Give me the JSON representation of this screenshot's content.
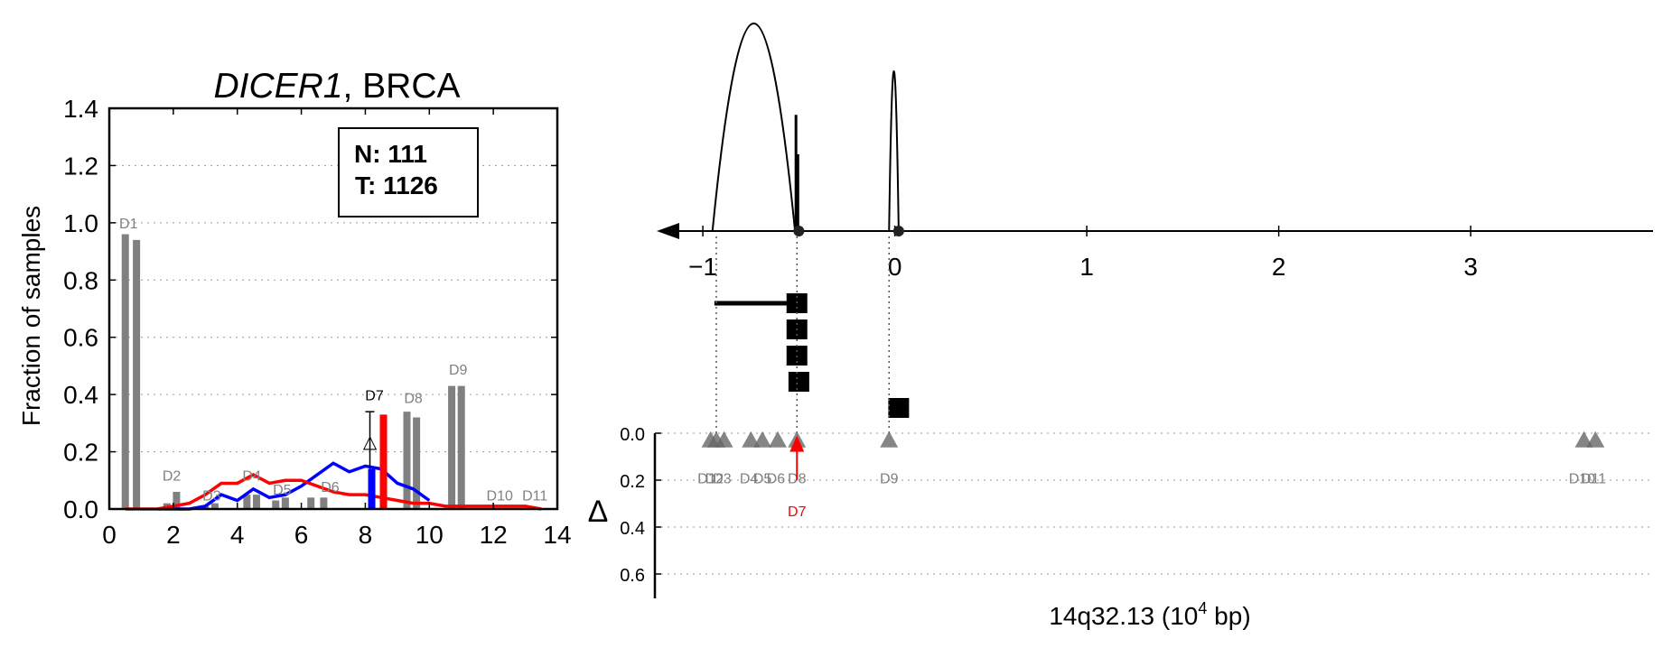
{
  "chart_data": [
    {
      "type": "bar",
      "title_italic": "DICER1",
      "title_rest": ", BRCA",
      "ylabel": "Fraction of samples",
      "xlim": [
        0,
        14
      ],
      "ylim": [
        0,
        1.4
      ],
      "xticks": [
        "0",
        "2",
        "4",
        "6",
        "8",
        "10",
        "12",
        "14"
      ],
      "yticks": [
        "0.0",
        "0.2",
        "0.4",
        "0.6",
        "0.8",
        "1.0",
        "1.2",
        "1.4"
      ],
      "grid": "horizontal dotted",
      "counts": {
        "normal": "N: 111",
        "tumor": "T: 1126"
      },
      "colors": {
        "normal": "#0000ff",
        "tumor": "#ff0000",
        "bar": "#808080",
        "highlight": "#000000"
      },
      "bars": [
        {
          "label": "D1",
          "x1": 0.5,
          "y1": 0.96,
          "x2": 0.85,
          "y2": 0.94,
          "label_x": 0.6,
          "label_y": 0.98
        },
        {
          "label": "D2",
          "x1": 1.8,
          "y1": 0.02,
          "x2": 2.1,
          "y2": 0.06,
          "label_x": 1.95,
          "label_y": 0.1
        },
        {
          "label": "D3",
          "x1": 3.0,
          "y1": 0.01,
          "x2": 3.3,
          "y2": 0.02,
          "label_x": 3.2,
          "label_y": 0.03
        },
        {
          "label": "D4",
          "x1": 4.3,
          "y1": 0.05,
          "x2": 4.6,
          "y2": 0.05,
          "label_x": 4.45,
          "label_y": 0.1
        },
        {
          "label": "D5",
          "x1": 5.2,
          "y1": 0.03,
          "x2": 5.5,
          "y2": 0.04,
          "label_x": 5.4,
          "label_y": 0.05
        },
        {
          "label": "D6",
          "x1": 6.3,
          "y1": 0.04,
          "x2": 6.7,
          "y2": 0.04,
          "label_x": 6.9,
          "label_y": 0.06
        },
        {
          "label": "D8",
          "x1": 9.3,
          "y1": 0.34,
          "x2": 9.6,
          "y2": 0.32,
          "label_x": 9.5,
          "label_y": 0.37
        },
        {
          "label": "D9",
          "x1": 10.7,
          "y1": 0.43,
          "x2": 11.0,
          "y2": 0.43,
          "label_x": 10.9,
          "label_y": 0.47
        },
        {
          "label": "D10",
          "x1": 12.1,
          "y1": 0.0,
          "x2": 12.4,
          "y2": 0.0,
          "label_x": 12.2,
          "label_y": 0.03
        },
        {
          "label": "D11",
          "x1": 13.2,
          "y1": 0.0,
          "x2": 13.5,
          "y2": 0.0,
          "label_x": 13.3,
          "label_y": 0.03
        }
      ],
      "highlight": {
        "label": "D7",
        "x": 8.2,
        "normal": 0.14,
        "tumor": 0.33,
        "marker": "△",
        "marker_y": 0.24,
        "err_low": 0.14,
        "err_high": 0.34,
        "label_y": 0.38
      },
      "series": [
        {
          "name": "normal",
          "x": [
            1.5,
            2,
            2.5,
            3,
            3.5,
            4,
            4.5,
            5,
            5.5,
            6,
            6.5,
            7,
            7.5,
            8,
            8.5,
            9,
            9.5,
            10
          ],
          "y": [
            0,
            0,
            0,
            0.01,
            0.05,
            0.03,
            0.07,
            0.04,
            0.05,
            0.08,
            0.12,
            0.16,
            0.13,
            0.15,
            0.14,
            0.09,
            0.07,
            0.03
          ]
        },
        {
          "name": "tumor",
          "x": [
            0.5,
            1,
            1.5,
            2,
            2.5,
            3,
            3.5,
            4,
            4.5,
            5,
            5.5,
            6,
            6.5,
            7,
            7.5,
            8,
            8.5,
            9,
            9.5,
            10,
            10.5,
            11,
            11.5,
            12,
            12.5,
            13,
            13.5
          ],
          "y": [
            0,
            0,
            0,
            0.01,
            0.02,
            0.05,
            0.09,
            0.09,
            0.12,
            0.09,
            0.1,
            0.1,
            0.08,
            0.06,
            0.05,
            0.05,
            0.04,
            0.03,
            0.02,
            0.02,
            0.01,
            0.01,
            0.01,
            0.01,
            0.01,
            0.01,
            0
          ]
        }
      ]
    },
    {
      "type": "scatter",
      "xlabel": "14q32.13 (10⁴ bp)",
      "xlabel_main": "14q32.13 (10",
      "xlabel_sup": "4",
      "xlabel_tail": " bp)",
      "ylabel": "Δ",
      "xlim": [
        -1.25,
        3.95
      ],
      "xticks": [
        {
          "v": -1,
          "label": "−1"
        },
        {
          "v": 0,
          "label": "0"
        },
        {
          "v": 1,
          "label": "1"
        },
        {
          "v": 2,
          "label": "2"
        },
        {
          "v": 3,
          "label": "3"
        }
      ],
      "ylim": [
        0.65,
        -0.02
      ],
      "yticks": [
        "0.0",
        "0.2",
        "0.4",
        "0.6"
      ],
      "grid": "horizontal dotted",
      "colors": {
        "gene": "#000000",
        "marker": "#666666",
        "highlight": "#ff0000",
        "label": "#7f7f7f"
      },
      "arcs": [
        {
          "from": -0.95,
          "to": -0.52,
          "height": 1.0
        },
        {
          "from": -0.03,
          "to": 0.02,
          "height": 0.77
        }
      ],
      "spikes": [
        {
          "x": -0.515,
          "height": 0.56
        },
        {
          "x": -0.505,
          "height": 0.37
        }
      ],
      "sites": [
        -0.5,
        0.02
      ],
      "transcripts": [
        {
          "x_start": -0.94,
          "x_end": -0.47
        },
        {
          "x_start": -0.51,
          "x_end": -0.47
        },
        {
          "x_start": -0.51,
          "x_end": -0.47
        },
        {
          "x_start": -0.51,
          "x_end": -0.46
        },
        {
          "x_start": -0.03,
          "x_end": 0.06
        }
      ],
      "guides": [
        -0.93,
        -0.51,
        -0.03
      ],
      "points": [
        {
          "label": "D1",
          "x": -0.96,
          "y": 0.03,
          "label_x": -0.98
        },
        {
          "label": "D2",
          "x": -0.93,
          "y": 0.03,
          "label_x": -0.94
        },
        {
          "label": "D3",
          "x": -0.89,
          "y": 0.03,
          "label_x": -0.9
        },
        {
          "label": "D4",
          "x": -0.75,
          "y": 0.03,
          "label_x": -0.76
        },
        {
          "label": "D5",
          "x": -0.69,
          "y": 0.03,
          "label_x": -0.69
        },
        {
          "label": "D6",
          "x": -0.61,
          "y": 0.03,
          "label_x": -0.62
        },
        {
          "label": "D8",
          "x": -0.51,
          "y": 0.03,
          "label_x": -0.51
        },
        {
          "label": "D9",
          "x": -0.03,
          "y": 0.03,
          "label_x": -0.03
        },
        {
          "label": "D10",
          "x": 3.59,
          "y": 0.03,
          "label_x": 3.58
        },
        {
          "label": "D11",
          "x": 3.65,
          "y": 0.03,
          "label_x": 3.64
        }
      ],
      "highlight": {
        "label": "D7",
        "x": -0.51,
        "y_low": 0.2,
        "y_high": 0.01,
        "label_y": 0.33
      },
      "label_y": 0.19
    }
  ]
}
